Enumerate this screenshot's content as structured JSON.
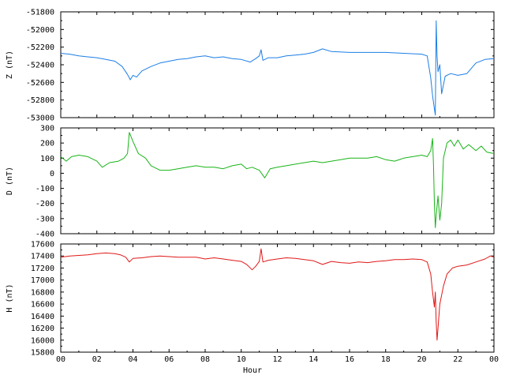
{
  "chart_data": {
    "type": "line",
    "shared_x": {
      "label": "Hour",
      "xlim": [
        0,
        24
      ],
      "tick_labels": [
        "00",
        "02",
        "04",
        "06",
        "08",
        "10",
        "12",
        "14",
        "16",
        "18",
        "20",
        "22",
        "00"
      ]
    },
    "panels": [
      {
        "ylabel": "Z (nT)",
        "ylim": [
          -53000,
          -51800
        ],
        "yticks": [
          -51800,
          -52000,
          -52200,
          -52400,
          -52600,
          -52800,
          -53000
        ],
        "color": "#1c7ee6",
        "points": [
          [
            0.0,
            -52270
          ],
          [
            0.5,
            -52280
          ],
          [
            1.0,
            -52300
          ],
          [
            1.5,
            -52310
          ],
          [
            2.0,
            -52320
          ],
          [
            2.5,
            -52340
          ],
          [
            3.0,
            -52360
          ],
          [
            3.4,
            -52420
          ],
          [
            3.7,
            -52510
          ],
          [
            3.85,
            -52570
          ],
          [
            4.0,
            -52520
          ],
          [
            4.2,
            -52540
          ],
          [
            4.5,
            -52470
          ],
          [
            5.0,
            -52420
          ],
          [
            5.5,
            -52380
          ],
          [
            6.0,
            -52360
          ],
          [
            6.5,
            -52340
          ],
          [
            7.0,
            -52330
          ],
          [
            7.5,
            -52310
          ],
          [
            8.0,
            -52300
          ],
          [
            8.5,
            -52320
          ],
          [
            9.0,
            -52310
          ],
          [
            9.5,
            -52330
          ],
          [
            10.0,
            -52340
          ],
          [
            10.5,
            -52370
          ],
          [
            10.8,
            -52330
          ],
          [
            11.0,
            -52300
          ],
          [
            11.1,
            -52230
          ],
          [
            11.2,
            -52350
          ],
          [
            11.5,
            -52320
          ],
          [
            12.0,
            -52320
          ],
          [
            12.5,
            -52300
          ],
          [
            13.0,
            -52290
          ],
          [
            13.5,
            -52280
          ],
          [
            14.0,
            -52260
          ],
          [
            14.5,
            -52220
          ],
          [
            15.0,
            -52250
          ],
          [
            16.0,
            -52260
          ],
          [
            17.0,
            -52260
          ],
          [
            18.0,
            -52260
          ],
          [
            19.0,
            -52270
          ],
          [
            20.0,
            -52280
          ],
          [
            20.3,
            -52300
          ],
          [
            20.5,
            -52550
          ],
          [
            20.6,
            -52750
          ],
          [
            20.7,
            -52900
          ],
          [
            20.75,
            -52970
          ],
          [
            20.8,
            -51900
          ],
          [
            20.85,
            -52300
          ],
          [
            20.9,
            -52480
          ],
          [
            21.0,
            -52400
          ],
          [
            21.1,
            -52730
          ],
          [
            21.3,
            -52530
          ],
          [
            21.6,
            -52500
          ],
          [
            22.0,
            -52520
          ],
          [
            22.5,
            -52500
          ],
          [
            23.0,
            -52380
          ],
          [
            23.5,
            -52340
          ],
          [
            24.0,
            -52330
          ]
        ]
      },
      {
        "ylabel": "D (nT)",
        "ylim": [
          -400,
          300
        ],
        "yticks": [
          300,
          200,
          100,
          0,
          -100,
          -200,
          -300,
          -400
        ],
        "color": "#18b418",
        "points": [
          [
            0.0,
            110
          ],
          [
            0.3,
            80
          ],
          [
            0.6,
            110
          ],
          [
            1.0,
            120
          ],
          [
            1.5,
            110
          ],
          [
            2.0,
            80
          ],
          [
            2.3,
            40
          ],
          [
            2.7,
            70
          ],
          [
            3.2,
            80
          ],
          [
            3.5,
            100
          ],
          [
            3.7,
            130
          ],
          [
            3.8,
            270
          ],
          [
            4.0,
            210
          ],
          [
            4.3,
            130
          ],
          [
            4.7,
            100
          ],
          [
            5.0,
            50
          ],
          [
            5.5,
            20
          ],
          [
            6.0,
            20
          ],
          [
            6.5,
            30
          ],
          [
            7.0,
            40
          ],
          [
            7.5,
            50
          ],
          [
            8.0,
            40
          ],
          [
            8.5,
            40
          ],
          [
            9.0,
            30
          ],
          [
            9.5,
            50
          ],
          [
            10.0,
            60
          ],
          [
            10.3,
            30
          ],
          [
            10.6,
            40
          ],
          [
            11.0,
            20
          ],
          [
            11.3,
            -30
          ],
          [
            11.6,
            30
          ],
          [
            12.0,
            40
          ],
          [
            12.5,
            50
          ],
          [
            13.0,
            60
          ],
          [
            13.5,
            70
          ],
          [
            14.0,
            80
          ],
          [
            14.5,
            70
          ],
          [
            15.0,
            80
          ],
          [
            15.5,
            90
          ],
          [
            16.0,
            100
          ],
          [
            16.5,
            100
          ],
          [
            17.0,
            100
          ],
          [
            17.5,
            110
          ],
          [
            18.0,
            90
          ],
          [
            18.5,
            80
          ],
          [
            19.0,
            100
          ],
          [
            19.5,
            110
          ],
          [
            20.0,
            120
          ],
          [
            20.3,
            110
          ],
          [
            20.5,
            150
          ],
          [
            20.6,
            230
          ],
          [
            20.65,
            50
          ],
          [
            20.7,
            -200
          ],
          [
            20.75,
            -360
          ],
          [
            20.8,
            -280
          ],
          [
            20.9,
            -150
          ],
          [
            21.0,
            -310
          ],
          [
            21.1,
            -200
          ],
          [
            21.2,
            100
          ],
          [
            21.4,
            200
          ],
          [
            21.6,
            220
          ],
          [
            21.8,
            180
          ],
          [
            22.0,
            220
          ],
          [
            22.3,
            160
          ],
          [
            22.6,
            190
          ],
          [
            23.0,
            150
          ],
          [
            23.3,
            180
          ],
          [
            23.6,
            140
          ],
          [
            24.0,
            130
          ]
        ]
      },
      {
        "ylabel": "H (nT)",
        "ylim": [
          15800,
          17600
        ],
        "yticks": [
          17600,
          17400,
          17200,
          17000,
          16800,
          16600,
          16400,
          16200,
          16000,
          15800
        ],
        "color": "#e01818",
        "points": [
          [
            0.0,
            17380
          ],
          [
            0.5,
            17400
          ],
          [
            1.0,
            17410
          ],
          [
            1.5,
            17420
          ],
          [
            2.0,
            17440
          ],
          [
            2.5,
            17450
          ],
          [
            3.0,
            17440
          ],
          [
            3.3,
            17420
          ],
          [
            3.6,
            17380
          ],
          [
            3.8,
            17300
          ],
          [
            4.0,
            17360
          ],
          [
            4.5,
            17370
          ],
          [
            5.0,
            17390
          ],
          [
            5.5,
            17400
          ],
          [
            6.0,
            17390
          ],
          [
            6.5,
            17380
          ],
          [
            7.0,
            17380
          ],
          [
            7.5,
            17380
          ],
          [
            8.0,
            17350
          ],
          [
            8.5,
            17370
          ],
          [
            9.0,
            17350
          ],
          [
            9.5,
            17330
          ],
          [
            10.0,
            17310
          ],
          [
            10.3,
            17260
          ],
          [
            10.6,
            17170
          ],
          [
            10.8,
            17230
          ],
          [
            11.0,
            17310
          ],
          [
            11.1,
            17520
          ],
          [
            11.2,
            17300
          ],
          [
            11.5,
            17330
          ],
          [
            12.0,
            17350
          ],
          [
            12.5,
            17370
          ],
          [
            13.0,
            17360
          ],
          [
            13.5,
            17340
          ],
          [
            14.0,
            17320
          ],
          [
            14.5,
            17260
          ],
          [
            15.0,
            17310
          ],
          [
            15.5,
            17290
          ],
          [
            16.0,
            17280
          ],
          [
            16.5,
            17300
          ],
          [
            17.0,
            17290
          ],
          [
            17.5,
            17310
          ],
          [
            18.0,
            17320
          ],
          [
            18.5,
            17340
          ],
          [
            19.0,
            17340
          ],
          [
            19.5,
            17350
          ],
          [
            20.0,
            17340
          ],
          [
            20.3,
            17300
          ],
          [
            20.5,
            17100
          ],
          [
            20.6,
            16800
          ],
          [
            20.7,
            16550
          ],
          [
            20.75,
            16800
          ],
          [
            20.8,
            16300
          ],
          [
            20.85,
            16000
          ],
          [
            20.9,
            16200
          ],
          [
            21.0,
            16600
          ],
          [
            21.2,
            16900
          ],
          [
            21.4,
            17100
          ],
          [
            21.7,
            17200
          ],
          [
            22.0,
            17230
          ],
          [
            22.5,
            17250
          ],
          [
            23.0,
            17300
          ],
          [
            23.5,
            17350
          ],
          [
            23.8,
            17400
          ],
          [
            24.0,
            17380
          ]
        ]
      }
    ]
  }
}
